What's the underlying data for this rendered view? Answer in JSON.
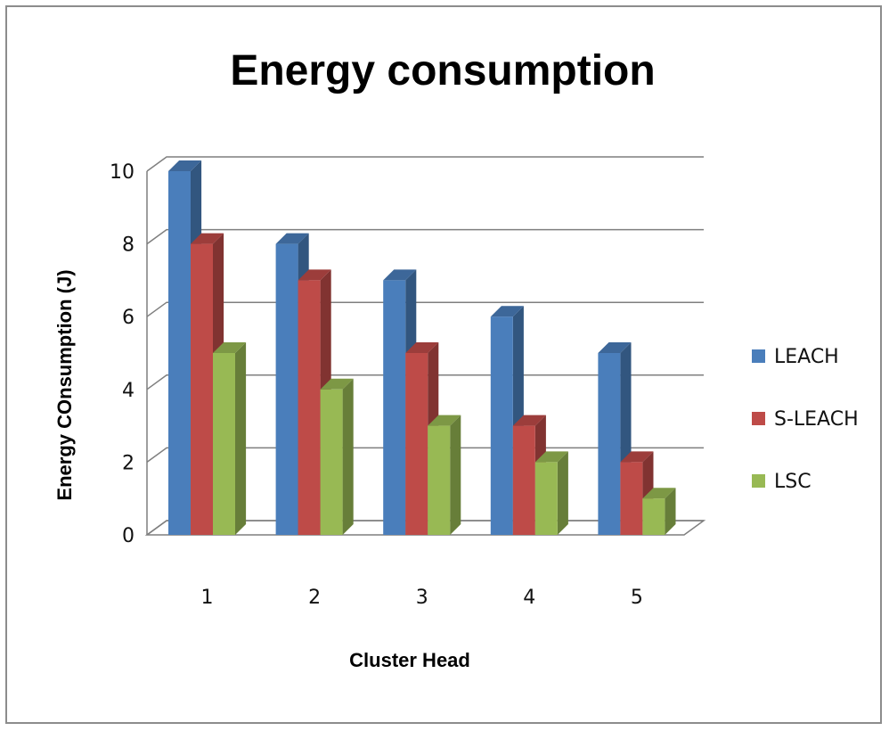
{
  "chart_data": {
    "type": "bar",
    "title": "Energy consumption",
    "xlabel": "Cluster Head",
    "ylabel": "Energy COnsumption (J)",
    "categories": [
      "1",
      "2",
      "3",
      "4",
      "5"
    ],
    "ylim": [
      0,
      10
    ],
    "yticks": [
      "0",
      "2",
      "4",
      "6",
      "8",
      "10"
    ],
    "grid": true,
    "legend_position": "right",
    "series": [
      {
        "name": "LEACH",
        "values": [
          10,
          8,
          7,
          6,
          5
        ],
        "color": "#4a7ebb"
      },
      {
        "name": "S-LEACH",
        "values": [
          8,
          7,
          5,
          3,
          2
        ],
        "color": "#be4b48"
      },
      {
        "name": "LSC",
        "values": [
          5,
          4,
          3,
          2,
          1
        ],
        "color": "#98b954"
      }
    ]
  }
}
